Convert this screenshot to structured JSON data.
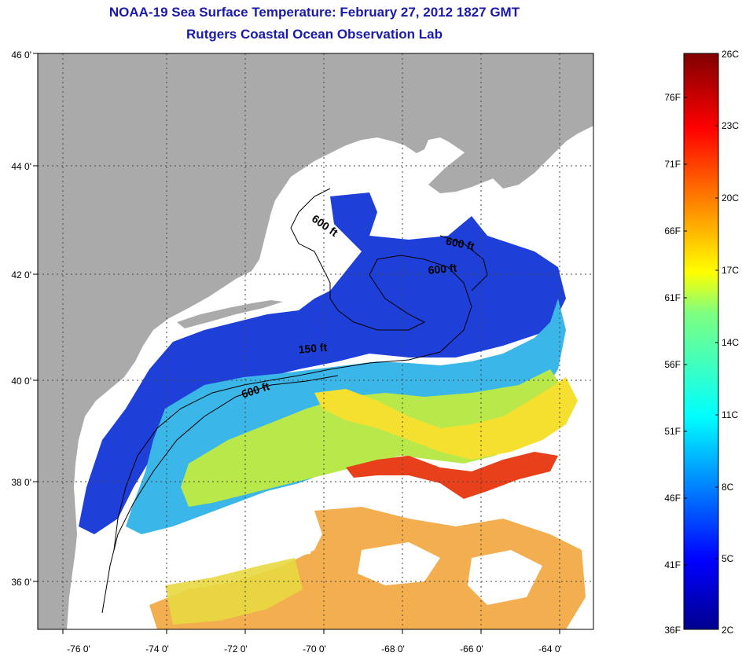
{
  "title": "NOAA-19 Sea Surface Temperature:  February 27, 2012 1827 GMT",
  "subtitle": "Rutgers Coastal Ocean Observation Lab",
  "lon_ticks": [
    "-76 0'",
    "-74 0'",
    "-72 0'",
    "-70 0'",
    "-68 0'",
    "-66 0'",
    "-64 0'"
  ],
  "lat_ticks": [
    "46 0'",
    "44 0'",
    "42 0'",
    "40 0'",
    "38 0'",
    "36 0'"
  ],
  "contour_labels": [
    "600 ft",
    "600 ft",
    "600 ft",
    "150 ft",
    "600 ft"
  ],
  "colorbar": {
    "fahrenheit": [
      "76F",
      "71F",
      "66F",
      "61F",
      "56F",
      "51F",
      "46F",
      "41F",
      "36F"
    ],
    "celsius": [
      "26C",
      "23C",
      "20C",
      "17C",
      "14C",
      "11C",
      "8C",
      "5C",
      "2C"
    ]
  },
  "colors": {
    "land": "#aaaaaa",
    "no_data": "#ffffff",
    "title": "#1a1aa8",
    "cold": "#1e3fd8",
    "cool": "#3ab7e8",
    "mild": "#b8e84a",
    "warm": "#f5e030",
    "hot": "#e8401a"
  }
}
